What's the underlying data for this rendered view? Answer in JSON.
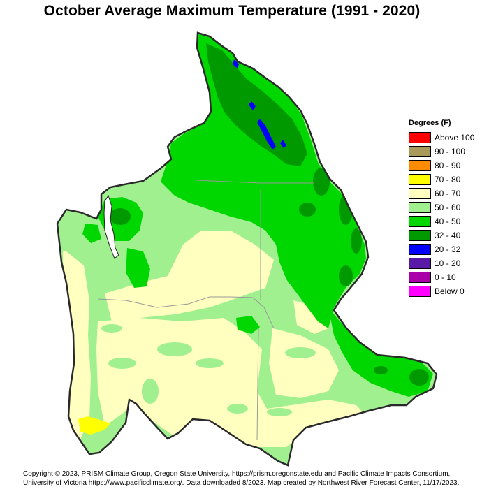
{
  "title": "October Average Maximum Temperature (1991 - 2020)",
  "legend": {
    "title": "Degrees (F)",
    "items": [
      {
        "label": "Above 100",
        "color": "#ff0000"
      },
      {
        "label": "90 - 100",
        "color": "#a89a5a"
      },
      {
        "label": "80 - 90",
        "color": "#ff8c00"
      },
      {
        "label": "70 - 80",
        "color": "#ffff00"
      },
      {
        "label": "60 - 70",
        "color": "#ffffc0"
      },
      {
        "label": "50 - 60",
        "color": "#a0f090"
      },
      {
        "label": "40 - 50",
        "color": "#00d600"
      },
      {
        "label": "32 - 40",
        "color": "#009a00"
      },
      {
        "label": "20 - 32",
        "color": "#0000ff"
      },
      {
        "label": "10 - 20",
        "color": "#5a1aa8"
      },
      {
        "label": "0 - 10",
        "color": "#aa00aa"
      },
      {
        "label": "Below 0",
        "color": "#ff00ff"
      }
    ]
  },
  "footer": {
    "line1": "Copyright © 2023, PRISM Climate Group, Oregon State University, https://prism.oregonstate.edu and Pacific Climate Impacts Consortium,",
    "line2": "University of Victoria https://www.pacificclimate.org/.  Data downloaded 8/2023. Map created by Northwest River Forecast Center, 11/17/2023."
  }
}
